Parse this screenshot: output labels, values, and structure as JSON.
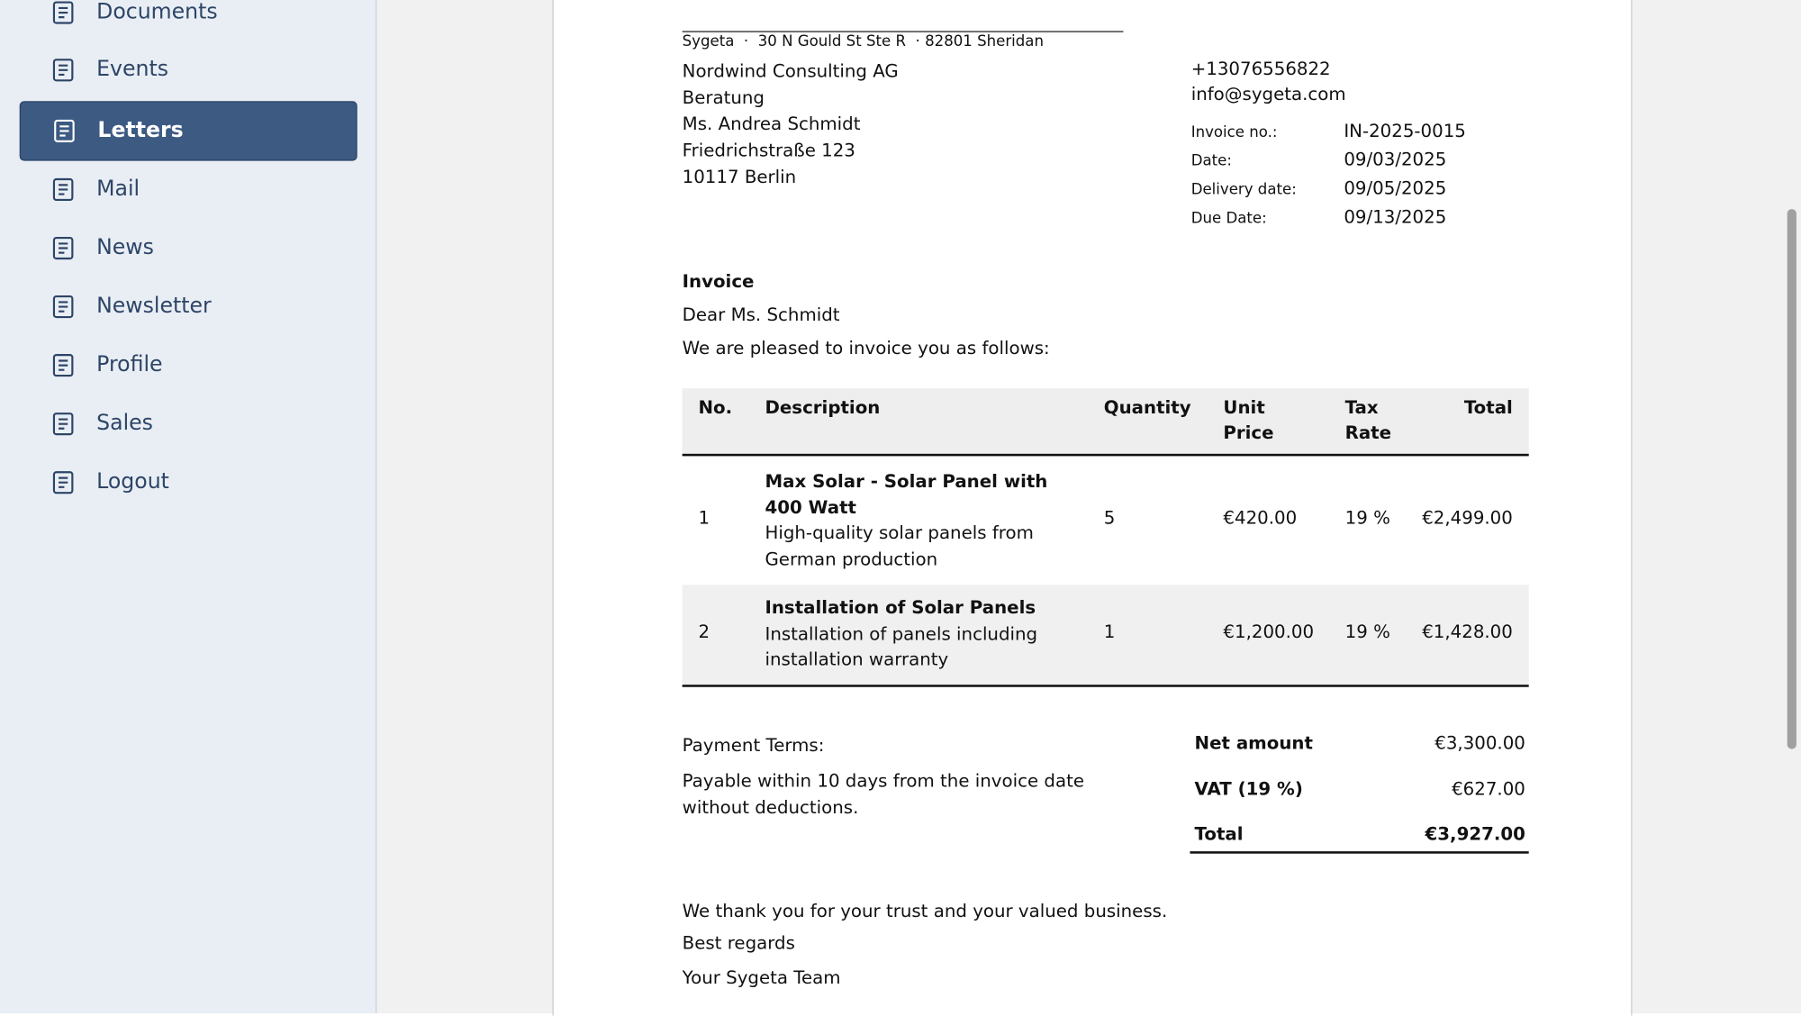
{
  "sidebar": {
    "items": [
      "Documents",
      "Events",
      "Letters",
      "Mail",
      "News",
      "Newsletter",
      "Profile",
      "Sales",
      "Logout"
    ],
    "active": 2
  },
  "letter": {
    "sender_line": "Sygeta  ·  30 N Gould St Ste R  · 82801 Sheridan",
    "recipient": [
      "Nordwind Consulting AG",
      "Beratung",
      "Ms. Andrea Schmidt",
      "Friedrichstraße 123",
      "10117 Berlin"
    ],
    "contact": [
      "+13076556822",
      "info@sygeta.com"
    ],
    "meta": [
      [
        "Invoice no.:",
        "IN-2025-0015"
      ],
      [
        "Date:",
        "09/03/2025"
      ],
      [
        "Delivery date:",
        "09/05/2025"
      ],
      [
        "Due Date:",
        "09/13/2025"
      ]
    ],
    "heading": "Invoice",
    "salutation": "Dear Ms. Schmidt",
    "intro": "We are pleased to invoice you as follows:",
    "table": {
      "headers": [
        "No.",
        "Description",
        "Quantity",
        "Unit Price",
        "Tax Rate",
        "Total"
      ],
      "rows": [
        {
          "no": "1",
          "title": "Max Solar - Solar Panel with 400 Watt",
          "desc": "High-quality solar panels from German production",
          "qty": "5",
          "unit": "€420.00",
          "tax": "19 %",
          "total": "€2,499.00"
        },
        {
          "no": "2",
          "title": "Installation of Solar Panels",
          "desc": "Installation of panels including installation warranty",
          "qty": "1",
          "unit": "€1,200.00",
          "tax": "19 %",
          "total": "€1,428.00"
        }
      ]
    },
    "payment_terms": {
      "label": "Payment Terms:",
      "text": "Payable within 10 days from the invoice date without deductions."
    },
    "totals": [
      [
        "Net amount",
        "€3,300.00"
      ],
      [
        "VAT (19 %)",
        "€627.00"
      ],
      [
        "Total",
        "€3,927.00"
      ]
    ],
    "closing": [
      "We thank you for your trust and your valued business.",
      "Best regards",
      "Your Sygeta Team"
    ]
  }
}
